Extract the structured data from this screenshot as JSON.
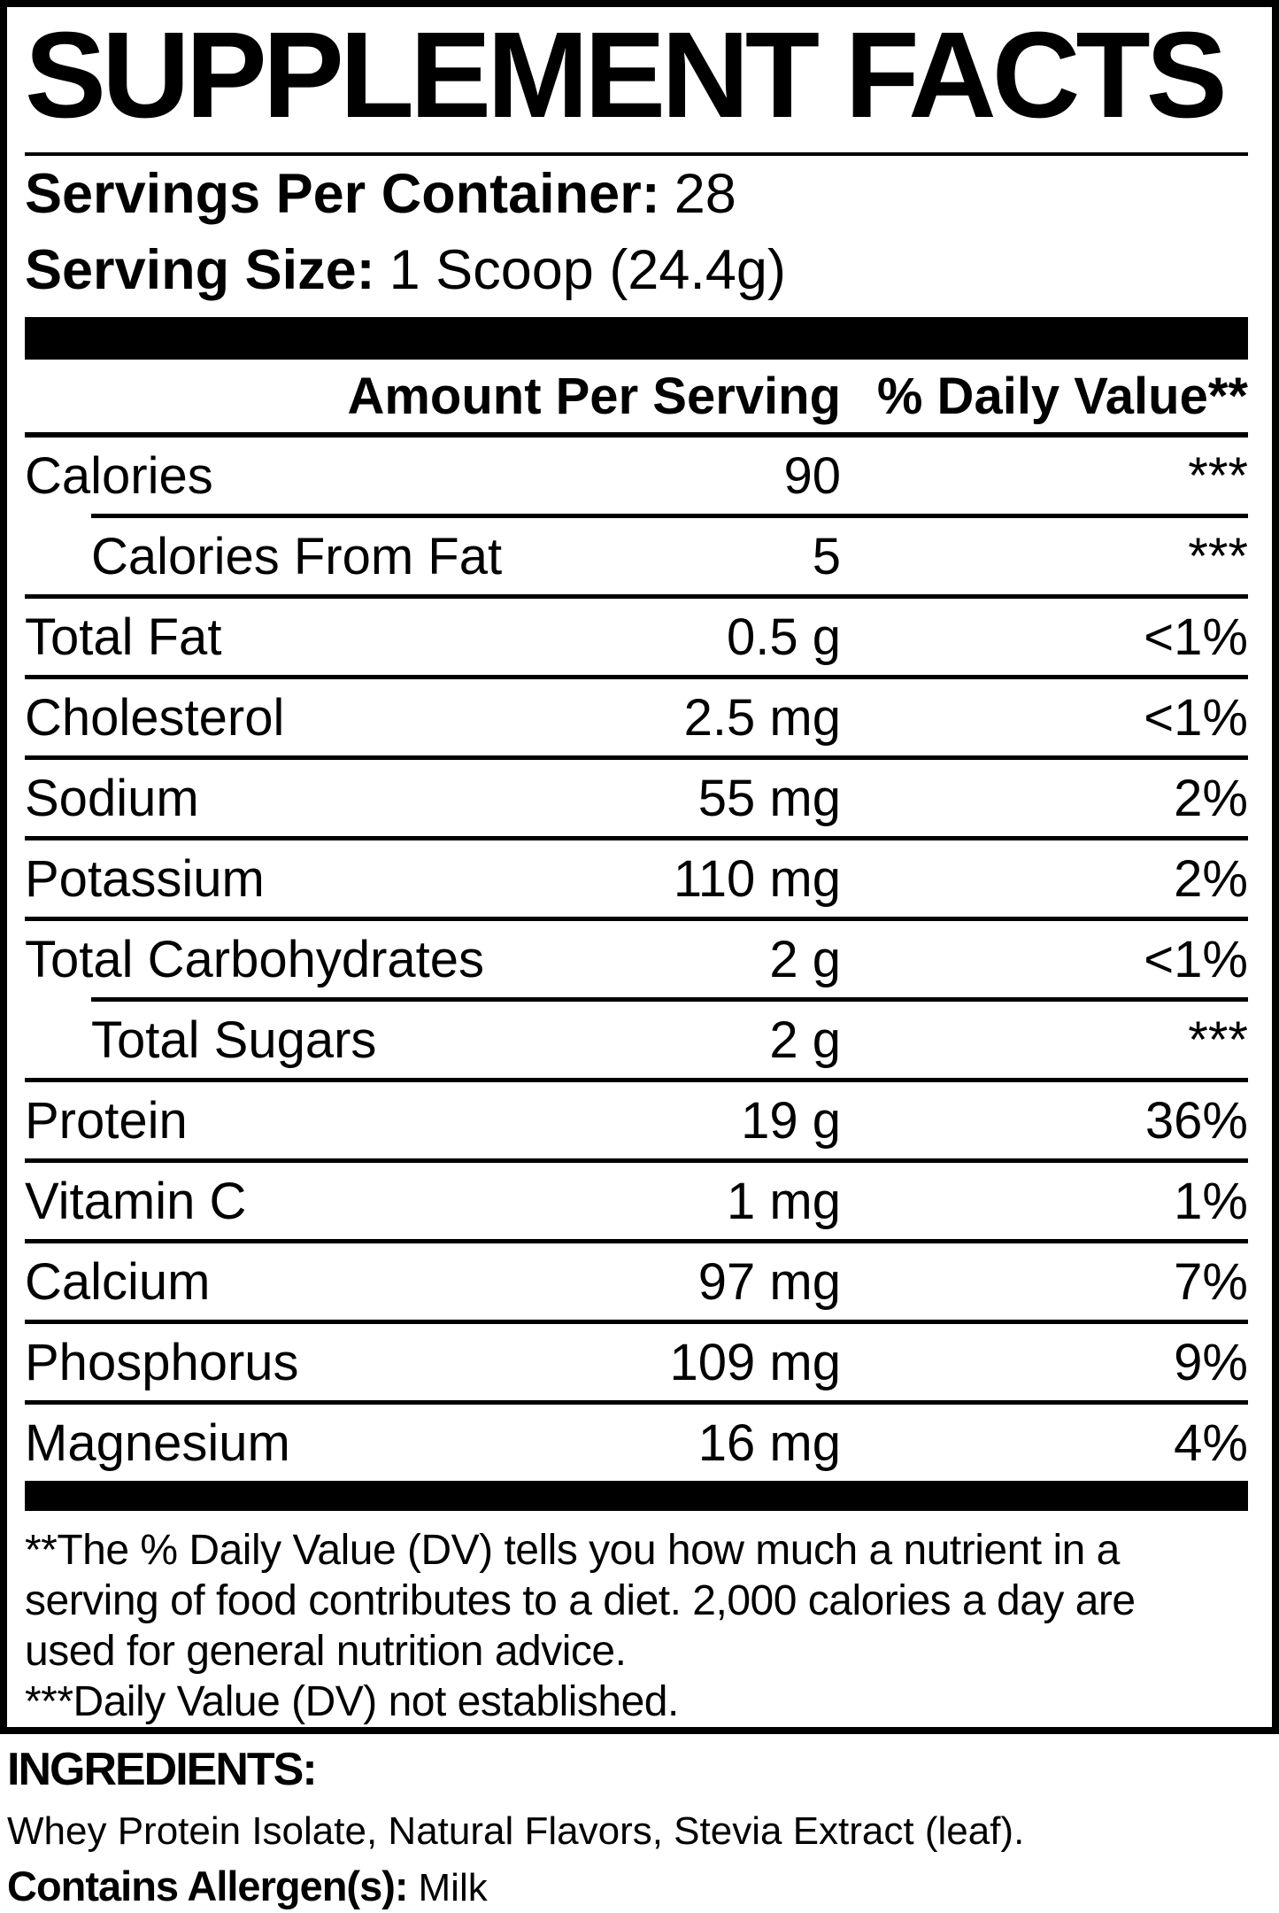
{
  "title": "SUPPLEMENT FACTS",
  "serving": {
    "servings_per_container_label": "Servings Per Container:",
    "servings_per_container_value": "28",
    "serving_size_label": "Serving Size:",
    "serving_size_value": "1 Scoop (24.4g)"
  },
  "table": {
    "amount_header": "Amount Per Serving",
    "dv_header": "% Daily Value**",
    "nutrients": [
      {
        "name": "Calories",
        "amount": "90",
        "dv": "***",
        "indent": false
      },
      {
        "name": "Calories From Fat",
        "amount": "5",
        "dv": "***",
        "indent": true
      },
      {
        "name": "Total Fat",
        "amount": "0.5 g",
        "dv": "<1%",
        "indent": false
      },
      {
        "name": "Cholesterol",
        "amount": "2.5 mg",
        "dv": "<1%",
        "indent": false
      },
      {
        "name": "Sodium",
        "amount": "55 mg",
        "dv": "2%",
        "indent": false
      },
      {
        "name": "Potassium",
        "amount": "110 mg",
        "dv": "2%",
        "indent": false
      },
      {
        "name": "Total Carbohydrates",
        "amount": "2 g",
        "dv": "<1%",
        "indent": false
      },
      {
        "name": "Total Sugars",
        "amount": "2 g",
        "dv": "***",
        "indent": true
      },
      {
        "name": "Protein",
        "amount": "19 g",
        "dv": "36%",
        "indent": false
      },
      {
        "name": "Vitamin C",
        "amount": "1 mg",
        "dv": "1%",
        "indent": false
      },
      {
        "name": "Calcium",
        "amount": "97 mg",
        "dv": "7%",
        "indent": false
      },
      {
        "name": "Phosphorus",
        "amount": "109 mg",
        "dv": "9%",
        "indent": false
      },
      {
        "name": "Magnesium",
        "amount": "16 mg",
        "dv": "4%",
        "indent": false
      }
    ]
  },
  "footnote": {
    "lines": [
      "**The % Daily Value (DV) tells you how much a nutrient in a",
      "serving of food contributes to a diet. 2,000 calories a day are",
      "used for general nutrition advice.",
      "***Daily Value (DV) not established."
    ]
  },
  "ingredients": {
    "heading": "INGREDIENTS:",
    "list": "Whey Protein Isolate, Natural Flavors, Stevia Extract (leaf).",
    "allergen_label": "Contains Allergen(s):",
    "allergen_value": "Milk"
  },
  "colors": {
    "text": "#000000",
    "background": "#ffffff",
    "bar": "#000000"
  }
}
